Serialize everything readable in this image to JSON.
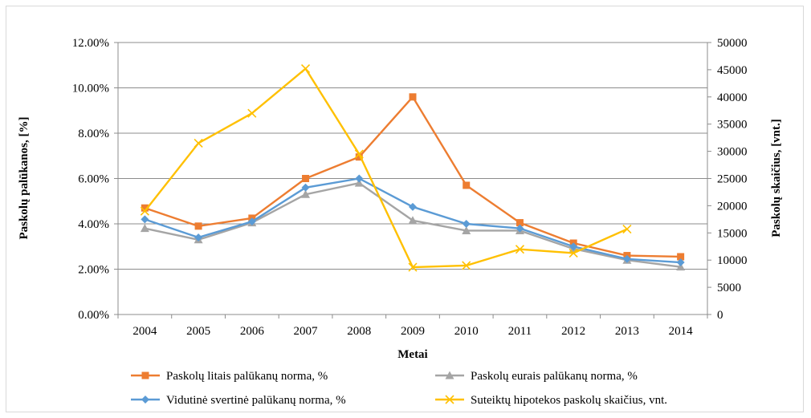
{
  "chart_data": {
    "type": "line",
    "xlabel": "Metai",
    "ylabel": "Paskolų palūkanos, [%]",
    "ylabel_right": "Paskolų skaičius, [vnt.]",
    "ylim": [
      0,
      12
    ],
    "ylim_right": [
      0,
      50000
    ],
    "grid": true,
    "legend_position": "bottom",
    "categories": [
      "2004",
      "2005",
      "2006",
      "2007",
      "2008",
      "2009",
      "2010",
      "2011",
      "2012",
      "2013",
      "2014"
    ],
    "y_ticks": [
      "0.00%",
      "2.00%",
      "4.00%",
      "6.00%",
      "8.00%",
      "10.00%",
      "12.00%"
    ],
    "y_tick_values": [
      0,
      2,
      4,
      6,
      8,
      10,
      12
    ],
    "y2_ticks": [
      "0",
      "5000",
      "10000",
      "15000",
      "20000",
      "25000",
      "30000",
      "35000",
      "40000",
      "45000",
      "50000"
    ],
    "y2_tick_values": [
      0,
      5000,
      10000,
      15000,
      20000,
      25000,
      30000,
      35000,
      40000,
      45000,
      50000
    ],
    "series": [
      {
        "name": "Paskolų litais palūkanų norma, %",
        "color": "#ED7D31",
        "marker": "square",
        "axis": "left",
        "values": [
          4.7,
          3.9,
          4.25,
          6.0,
          6.95,
          9.6,
          5.7,
          4.05,
          3.15,
          2.6,
          2.55
        ]
      },
      {
        "name": "Paskolų eurais palūkanų norma, %",
        "color": "#A5A5A5",
        "marker": "triangle",
        "axis": "left",
        "values": [
          3.8,
          3.3,
          4.05,
          5.3,
          5.8,
          4.15,
          3.7,
          3.7,
          2.9,
          2.4,
          2.1
        ]
      },
      {
        "name": "Vidutinė svertinė palūkanų norma, %",
        "color": "#5B9BD5",
        "marker": "diamond",
        "axis": "left",
        "values": [
          4.2,
          3.4,
          4.1,
          5.6,
          6.0,
          4.75,
          4.0,
          3.8,
          3.0,
          2.45,
          2.3
        ]
      },
      {
        "name": "Suteiktų hipotekos paskolų skaičius, vnt.",
        "color": "#FFC000",
        "marker": "x",
        "axis": "right",
        "values": [
          19000,
          31500,
          37000,
          45200,
          29500,
          8700,
          9000,
          12000,
          11300,
          15700,
          null
        ]
      }
    ]
  }
}
